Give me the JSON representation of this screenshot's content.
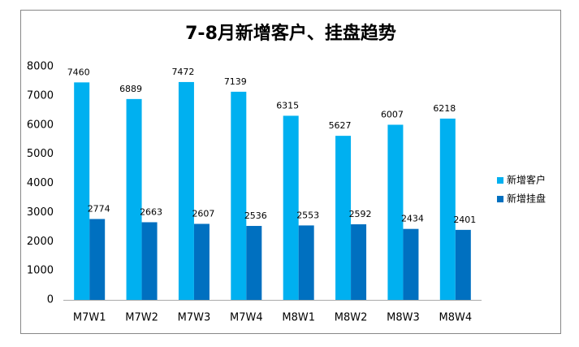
{
  "chart_data": {
    "type": "bar",
    "title": "7-8月新增客户、挂盘趋势",
    "categories": [
      "M7W1",
      "M7W2",
      "M7W3",
      "M7W4",
      "M8W1",
      "M8W2",
      "M8W3",
      "M8W4"
    ],
    "series": [
      {
        "name": "新增客户",
        "color": "#00b0f0",
        "values": [
          7460,
          6889,
          7472,
          7139,
          6315,
          5627,
          6007,
          6218
        ]
      },
      {
        "name": "新增挂盘",
        "color": "#0070c0",
        "values": [
          2774,
          2663,
          2607,
          2536,
          2553,
          2592,
          2434,
          2401
        ]
      }
    ],
    "ylim": [
      0,
      8000
    ],
    "yticks": [
      0,
      1000,
      2000,
      3000,
      4000,
      5000,
      6000,
      7000,
      8000
    ],
    "legend": "right",
    "grid": false
  }
}
